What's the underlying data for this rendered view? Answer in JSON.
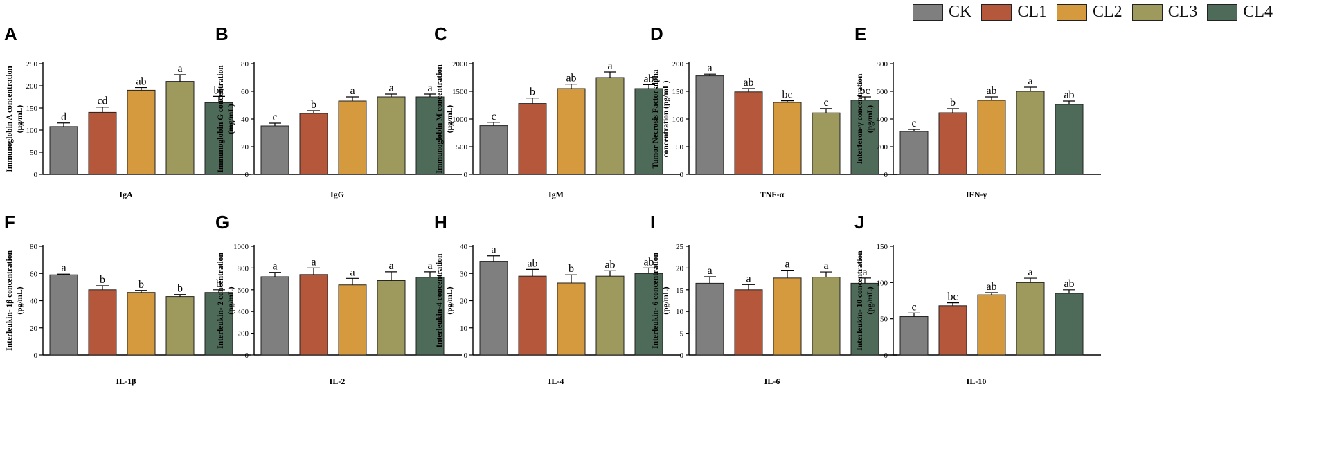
{
  "legend": {
    "items": [
      {
        "label": "CK",
        "color": "#7f7f7f"
      },
      {
        "label": "CL1",
        "color": "#b5573b"
      },
      {
        "label": "CL2",
        "color": "#d49a3d"
      },
      {
        "label": "CL3",
        "color": "#9e9a5e"
      },
      {
        "label": "CL4",
        "color": "#4e6b5a"
      }
    ]
  },
  "chart_data": [
    {
      "panel": "A",
      "type": "bar",
      "ylabel": [
        "Immunoglobin A concentration",
        "(μg/mL)"
      ],
      "xlabel": "IgA",
      "ylim": [
        0,
        250
      ],
      "yticks": [
        0,
        50,
        100,
        150,
        200,
        250
      ],
      "categories": [
        "CK",
        "CL1",
        "CL2",
        "CL3",
        "CL4"
      ],
      "values": [
        108,
        140,
        190,
        210,
        162
      ],
      "errors": [
        8,
        12,
        6,
        15,
        14
      ],
      "letters": [
        "d",
        "cd",
        "ab",
        "a",
        "bc"
      ]
    },
    {
      "panel": "B",
      "type": "bar",
      "ylabel": [
        "Immunoglobin G concentration",
        "(mg/mL)"
      ],
      "xlabel": "IgG",
      "ylim": [
        0,
        80
      ],
      "yticks": [
        0,
        20,
        40,
        60,
        80
      ],
      "categories": [
        "CK",
        "CL1",
        "CL2",
        "CL3",
        "CL4"
      ],
      "values": [
        35,
        44,
        53,
        56,
        56
      ],
      "errors": [
        2,
        2,
        3,
        2,
        2
      ],
      "letters": [
        "c",
        "b",
        "a",
        "a",
        "a"
      ]
    },
    {
      "panel": "C",
      "type": "bar",
      "ylabel": [
        "Immunoglobin M concentration",
        "(μg/mL)"
      ],
      "xlabel": "IgM",
      "ylim": [
        0,
        2000
      ],
      "yticks": [
        0,
        500,
        1000,
        1500,
        2000
      ],
      "categories": [
        "CK",
        "CL1",
        "CL2",
        "CL3",
        "CL4"
      ],
      "values": [
        880,
        1280,
        1550,
        1750,
        1550
      ],
      "errors": [
        60,
        100,
        80,
        100,
        70
      ],
      "letters": [
        "c",
        "b",
        "ab",
        "a",
        "ab"
      ]
    },
    {
      "panel": "D",
      "type": "bar",
      "ylabel": [
        "Tumor Necrosis Factor alpha",
        "concentration (pg/mL)"
      ],
      "xlabel": "TNF-α",
      "ylim": [
        0,
        200
      ],
      "yticks": [
        0,
        50,
        100,
        150,
        200
      ],
      "categories": [
        "CK",
        "CL1",
        "CL2",
        "CL3",
        "CL4"
      ],
      "values": [
        178,
        149,
        130,
        111,
        134
      ],
      "errors": [
        3,
        6,
        3,
        8,
        6
      ],
      "letters": [
        "a",
        "ab",
        "bc",
        "c",
        "bc"
      ]
    },
    {
      "panel": "E",
      "type": "bar",
      "ylabel": [
        "Interferon-γ concentration",
        "(pg/mL)"
      ],
      "xlabel": "IFN-γ",
      "ylim": [
        0,
        800
      ],
      "yticks": [
        0,
        200,
        400,
        600,
        800
      ],
      "categories": [
        "CK",
        "CL1",
        "CL2",
        "CL3",
        "CL4"
      ],
      "values": [
        310,
        445,
        535,
        600,
        505
      ],
      "errors": [
        15,
        30,
        25,
        30,
        25
      ],
      "letters": [
        "c",
        "b",
        "ab",
        "a",
        "ab"
      ]
    },
    {
      "panel": "F",
      "type": "bar",
      "ylabel": [
        "Interleukin- 1β concentration",
        "(pg/mL)"
      ],
      "xlabel": "IL-1β",
      "ylim": [
        0,
        80
      ],
      "yticks": [
        0,
        20,
        40,
        60,
        80
      ],
      "categories": [
        "CK",
        "CL1",
        "CL2",
        "CL3",
        "CL4"
      ],
      "values": [
        59,
        48,
        46,
        43,
        46
      ],
      "errors": [
        0.5,
        3,
        1.5,
        1.5,
        2
      ],
      "letters": [
        "a",
        "b",
        "b",
        "b",
        "b"
      ]
    },
    {
      "panel": "G",
      "type": "bar",
      "ylabel": [
        "Interleukin- 2 concentration",
        "(pg/mL)"
      ],
      "xlabel": "IL-2",
      "ylim": [
        0,
        1000
      ],
      "yticks": [
        0,
        200,
        400,
        600,
        800,
        1000
      ],
      "categories": [
        "CK",
        "CL1",
        "CL2",
        "CL3",
        "CL4"
      ],
      "values": [
        720,
        740,
        645,
        685,
        715
      ],
      "errors": [
        40,
        60,
        60,
        80,
        50
      ],
      "letters": [
        "a",
        "a",
        "a",
        "a",
        "a"
      ]
    },
    {
      "panel": "H",
      "type": "bar",
      "ylabel": [
        "Interleukin-4 concentration",
        "(pg/mL)"
      ],
      "xlabel": "IL-4",
      "ylim": [
        0,
        40
      ],
      "yticks": [
        0,
        10,
        20,
        30,
        40
      ],
      "categories": [
        "CK",
        "CL1",
        "CL2",
        "CL3",
        "CL4"
      ],
      "values": [
        34.5,
        29,
        26.5,
        29,
        30
      ],
      "errors": [
        2,
        2.5,
        3,
        2,
        2
      ],
      "letters": [
        "a",
        "ab",
        "b",
        "ab",
        "ab"
      ]
    },
    {
      "panel": "I",
      "type": "bar",
      "ylabel": [
        "Interleukin- 6 concentration",
        "(pg/mL)"
      ],
      "xlabel": "IL-6",
      "ylim": [
        0,
        25
      ],
      "yticks": [
        0,
        5,
        10,
        15,
        20,
        25
      ],
      "categories": [
        "CK",
        "CL1",
        "CL2",
        "CL3",
        "CL4"
      ],
      "values": [
        16.5,
        15,
        17.7,
        17.9,
        16.5
      ],
      "errors": [
        1.5,
        1.2,
        1.8,
        1.2,
        1.2
      ],
      "letters": [
        "a",
        "a",
        "a",
        "a",
        "a"
      ]
    },
    {
      "panel": "J",
      "type": "bar",
      "ylabel": [
        "Interleukin- 10 concentration",
        "(pg/mL)"
      ],
      "xlabel": "IL-10",
      "ylim": [
        0,
        150
      ],
      "yticks": [
        0,
        50,
        100,
        150
      ],
      "categories": [
        "CK",
        "CL1",
        "CL2",
        "CL3",
        "CL4"
      ],
      "values": [
        53,
        68,
        83,
        100,
        85
      ],
      "errors": [
        5,
        4,
        3,
        6,
        5
      ],
      "letters": [
        "c",
        "bc",
        "ab",
        "a",
        "ab"
      ]
    }
  ]
}
